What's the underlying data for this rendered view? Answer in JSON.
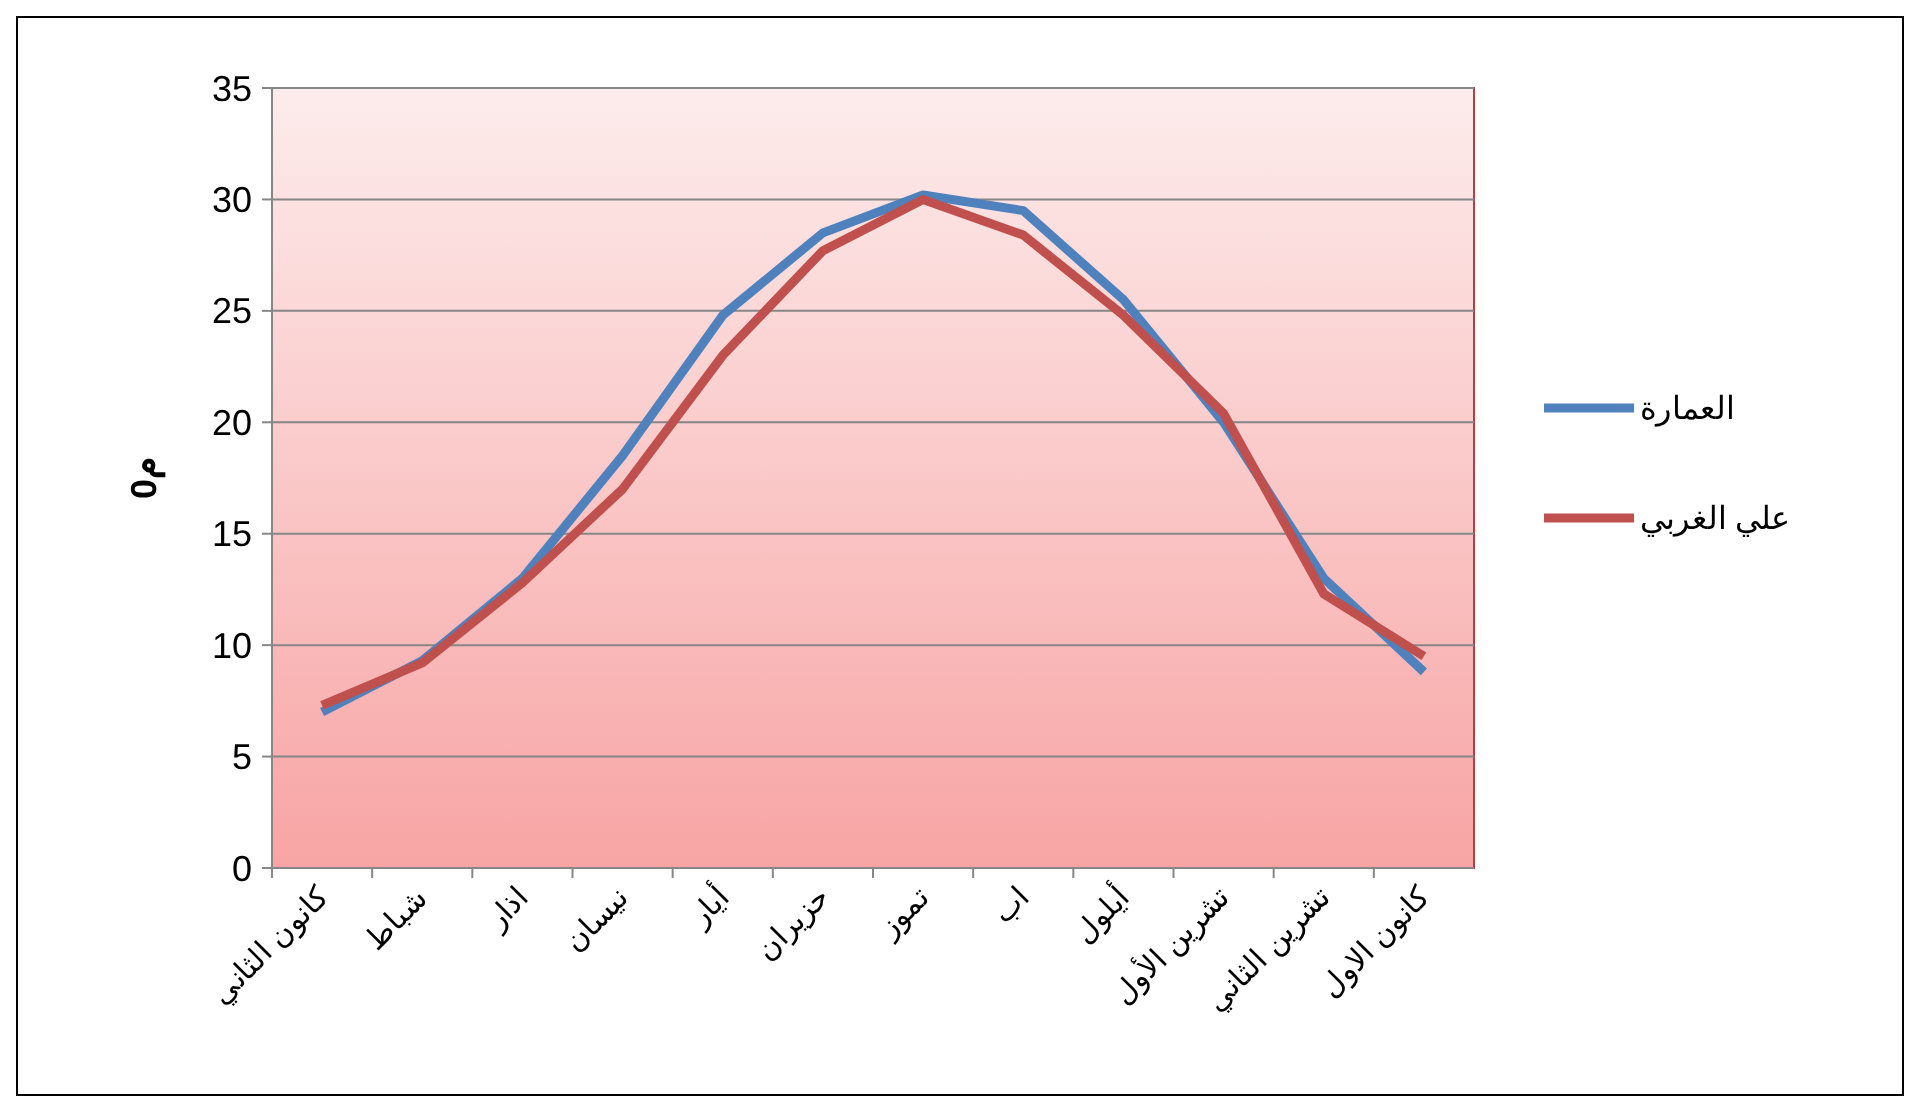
{
  "chart_data": {
    "type": "line",
    "ylabel": "0م",
    "categories": [
      "كانون الثاني",
      "شباط",
      "اذار",
      "نيسان",
      "أيار",
      "حزيران",
      "تموز",
      "اب",
      "أيلول",
      "تشرين الأول",
      "تشرين الثاني",
      "كانون الاول"
    ],
    "series": [
      {
        "name": "العمارة",
        "color": "#4f81bd",
        "values": [
          7.0,
          9.3,
          13.0,
          18.5,
          24.8,
          28.5,
          30.2,
          29.5,
          25.5,
          20.0,
          13.0,
          8.8
        ]
      },
      {
        "name": "علي الغربي",
        "color": "#c0504d",
        "values": [
          7.3,
          9.2,
          12.8,
          17.0,
          23.0,
          27.7,
          30.0,
          28.4,
          24.8,
          20.4,
          12.3,
          9.5
        ]
      }
    ],
    "ylim": [
      0,
      35
    ],
    "yticks": [
      0,
      5,
      10,
      15,
      20,
      25,
      30,
      35
    ],
    "grid": "y",
    "legend": "right",
    "marker": "none",
    "line_style": "solid"
  }
}
